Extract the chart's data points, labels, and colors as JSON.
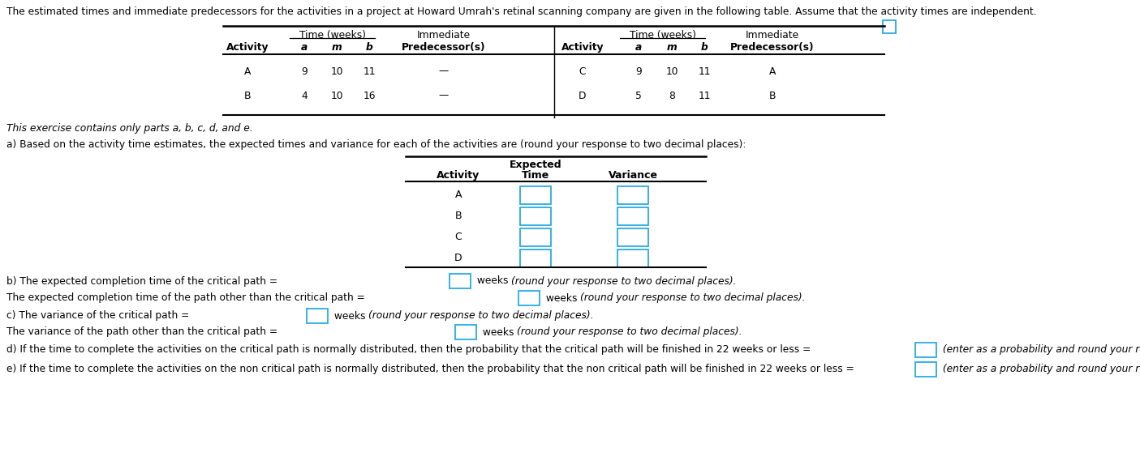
{
  "title_text": "The estimated times and immediate predecessors for the activities in a project at Howard Umrah's retinal scanning company are given in the following table. Assume that the activity times are independent.",
  "italic_note": "This exercise contains only parts a, b, c, d, and e.",
  "part_a_label": "a) Based on the activity time estimates, the expected times and variance for each of the activities are (round your response to two decimal places):",
  "part_b_line1_pre": "b) The expected completion time of the critical path =",
  "part_b_line1_suf": "weeks",
  "part_b_line1_italic": "(round your response to two decimal places).",
  "part_b_line2_pre": "The expected completion time of the path other than the critical path =",
  "part_b_line2_suf": "weeks",
  "part_b_line2_italic": "(round your response to two decimal places).",
  "part_c_line1_pre": "c) The variance of the critical path =",
  "part_c_line1_suf": "weeks",
  "part_c_line1_italic": "(round your response to two decimal places).",
  "part_c_line2_pre": "The variance of the path other than the critical path =",
  "part_c_line2_suf": "weeks",
  "part_c_line2_italic": "(round your response to two decimal places).",
  "part_d_pre": "d) If the time to complete the activities on the critical path is normally distributed, then the probability that the critical path will be finished in 22 weeks or less =",
  "part_d_italic": "(enter as a probability and round your response to two decimal places).",
  "part_e_pre": "e) If the time to complete the activities on the non critical path is normally distributed, then the probability that the non critical path will be finished in 22 weeks or less =",
  "part_e_italic": "(enter as a probability and round your response to two decimal places).",
  "input_box_color": "#29ABE2",
  "background_color": "#ffffff",
  "text_color": "#000000",
  "rows_left": [
    [
      "A",
      "9",
      "10",
      "11",
      "—"
    ],
    [
      "B",
      "4",
      "10",
      "16",
      "—"
    ]
  ],
  "rows_right": [
    [
      "C",
      "9",
      "10",
      "11",
      "A"
    ],
    [
      "D",
      "5",
      "8",
      "11",
      "B"
    ]
  ],
  "part_a_rows": [
    "A",
    "B",
    "C",
    "D"
  ]
}
